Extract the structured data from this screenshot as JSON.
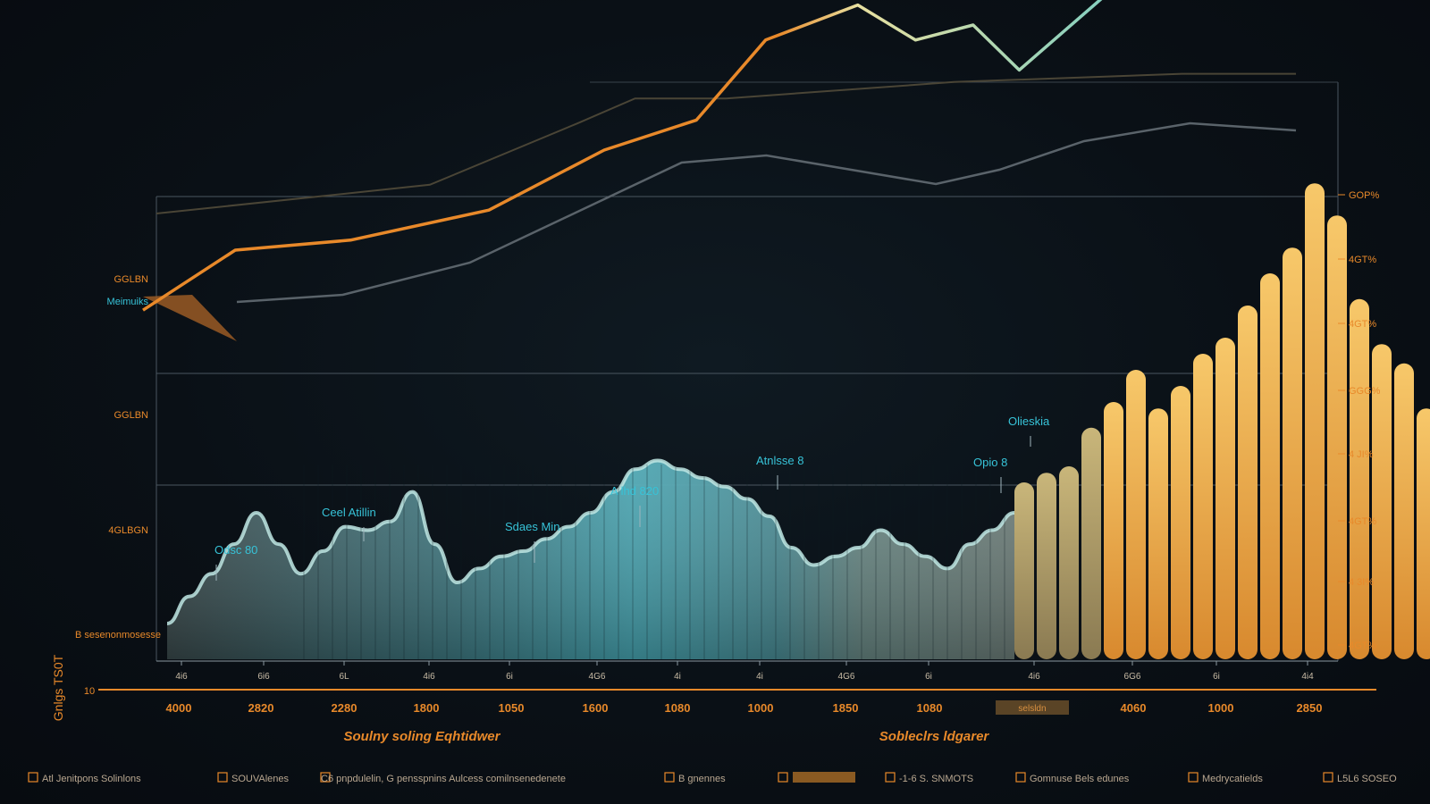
{
  "colors": {
    "background": "#0b1016",
    "orange": "#e8892a",
    "cyan": "#37c3d8",
    "gold": "#f2b85a",
    "teal": "#5fb3bd",
    "grid": "#4a5660"
  },
  "chart_data": {
    "type": "area",
    "left_axis_labels": [
      {
        "text": "GGLBN",
        "color": "orange",
        "y_frac": 0.0
      },
      {
        "text": "Meimuiks",
        "color": "cyan",
        "y_frac": 0.0
      },
      {
        "text": "GGLBN",
        "color": "orange",
        "y_frac": 0.0
      },
      {
        "text": "4GLBGN",
        "color": "orange",
        "y_frac": 0.0
      },
      {
        "text": "B sesenonmosesse",
        "color": "orange",
        "y_frac": 0.0
      }
    ],
    "right_ticks": [
      "GOP%",
      "4GT%",
      "4GT%",
      "GGG%",
      "4 JI%",
      "4GT%",
      "4 3I%",
      "4GT%"
    ],
    "x_ticks_top": [
      "4i6",
      "6i6",
      "6L",
      "4i6",
      "6i",
      "4G6",
      "4i",
      "4i",
      "4G6",
      "6i",
      "4i6",
      "6G6",
      "6i",
      "4i4"
    ],
    "x_ticks_bottom": [
      "4000",
      "2820",
      "2280",
      "1800",
      "1050",
      "1600",
      "1080",
      "1000",
      "1850",
      "1080",
      "",
      "4060",
      "1000",
      "2850"
    ],
    "x_highlight": "selsldn",
    "y_axis_bottom": "10",
    "y_axis_title": "Gnlgs TS0T",
    "x_title_left": "Soulny soling Eqhtidwer",
    "x_title_right": "Sobleclrs ldgarer",
    "annotations": [
      {
        "text": "Odsc 80",
        "x": 0
      },
      {
        "text": "Ceel Atillin",
        "x": 0
      },
      {
        "text": "Sdaes Min",
        "x": 0
      },
      {
        "text": "A lhd 820",
        "x": 0
      },
      {
        "text": "Atnlsse 8",
        "x": 0
      },
      {
        "text": "Opio 8",
        "x": 0
      },
      {
        "text": "Olieskia",
        "x": 0
      }
    ],
    "area_profile": [
      0.2,
      0.32,
      0.45,
      0.62,
      0.8,
      0.62,
      0.45,
      0.58,
      0.72,
      0.7,
      0.75,
      0.92,
      0.62,
      0.4,
      0.48,
      0.55,
      0.58,
      0.65,
      0.72,
      0.8,
      0.92,
      1.05,
      1.1,
      1.05,
      1.0,
      0.95,
      0.88,
      0.78,
      0.6,
      0.5,
      0.55,
      0.6,
      0.7,
      0.62,
      0.55,
      0.48,
      0.62,
      0.7,
      0.8
    ],
    "bars": [
      0.55,
      0.58,
      0.6,
      0.72,
      0.8,
      0.9,
      0.78,
      0.85,
      0.95,
      1.0,
      1.1,
      1.2,
      1.28,
      1.48,
      1.38,
      1.12,
      0.98,
      0.92,
      0.78,
      0.55,
      0.36
    ],
    "line_orange": [
      [
        0,
        0.62
      ],
      [
        0.08,
        0.5
      ],
      [
        0.18,
        0.48
      ],
      [
        0.3,
        0.42
      ],
      [
        0.4,
        0.3
      ],
      [
        0.48,
        0.24
      ],
      [
        0.54,
        0.08
      ]
    ],
    "line_cyan": [
      [
        0.54,
        0.08
      ],
      [
        0.62,
        0.01
      ],
      [
        0.67,
        0.08
      ],
      [
        0.72,
        0.05
      ],
      [
        0.76,
        0.14
      ],
      [
        0.86,
        -0.06
      ],
      [
        0.92,
        -0.1
      ],
      [
        1.0,
        -0.16
      ]
    ],
    "line_gray": [
      [
        0,
        0.55
      ],
      [
        0.1,
        0.53
      ],
      [
        0.22,
        0.44
      ],
      [
        0.32,
        0.3
      ],
      [
        0.42,
        0.16
      ],
      [
        0.5,
        0.14
      ],
      [
        0.58,
        0.18
      ],
      [
        0.66,
        0.22
      ],
      [
        0.72,
        0.18
      ],
      [
        0.8,
        0.1
      ],
      [
        0.9,
        0.05
      ],
      [
        1.0,
        0.07
      ]
    ],
    "line_dark": [
      [
        0,
        0.4
      ],
      [
        0.24,
        0.33
      ],
      [
        0.37,
        0.18
      ],
      [
        0.42,
        0.12
      ],
      [
        0.5,
        0.12
      ],
      [
        0.7,
        0.08
      ],
      [
        0.9,
        0.06
      ],
      [
        1.0,
        0.06
      ]
    ],
    "legend": [
      {
        "text": "Atl Jenitpons Solinlons",
        "swatch": false
      },
      {
        "text": "SOUVAlenes",
        "swatch": false
      },
      {
        "text": "C6 pnpdulelin, G pensspnins Aulcess comilnsenedenete",
        "swatch": false
      },
      {
        "text": "B gnennes",
        "swatch": false
      },
      {
        "text": "",
        "swatch": true
      },
      {
        "text": "-1-6 S. SNMOTS",
        "swatch": false
      },
      {
        "text": "Gomnuse Bels edunes",
        "swatch": false
      },
      {
        "text": "Medrycatields",
        "swatch": false
      },
      {
        "text": "L5L6 SOSEO",
        "swatch": false
      }
    ]
  }
}
